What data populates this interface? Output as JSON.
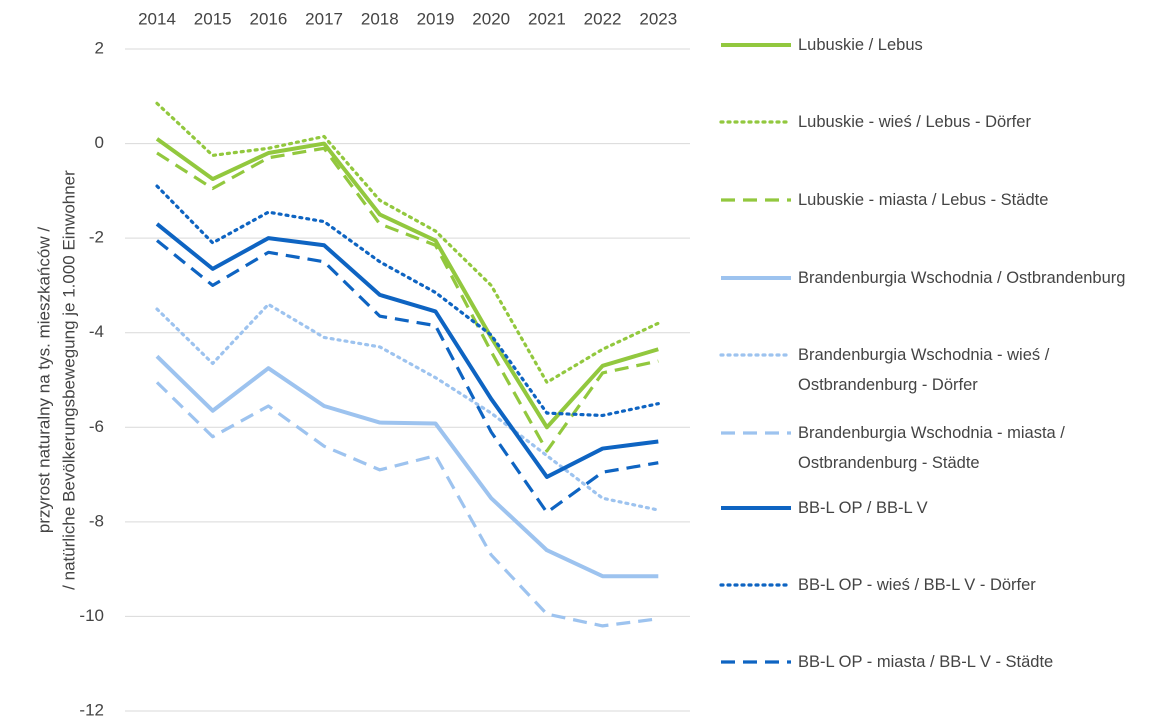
{
  "chart_data": {
    "type": "line",
    "y_axis_label": [
      "przyrost naturalny na tys. mieszkańców /",
      "/ natürliche Bevölkerungsbewegung je 1.000 Einwohner"
    ],
    "categories": [
      "2014",
      "2015",
      "2016",
      "2017",
      "2018",
      "2019",
      "2020",
      "2021",
      "2022",
      "2023"
    ],
    "ylim": [
      -12,
      2
    ],
    "yticks": [
      2,
      0,
      -2,
      -4,
      -6,
      -8,
      -10,
      -12
    ],
    "grid": true,
    "series": [
      {
        "name": "Lubuskie / Lebus",
        "color": "#92c83e",
        "dash": "solid",
        "values": [
          0.1,
          -0.75,
          -0.2,
          0.0,
          -1.5,
          -2.05,
          -4.1,
          -6.0,
          -4.7,
          -4.35
        ]
      },
      {
        "name": "Lubuskie - wieś / Lebus - Dörfer",
        "color": "#92c83e",
        "dash": "dotted",
        "values": [
          0.85,
          -0.25,
          -0.1,
          0.15,
          -1.2,
          -1.85,
          -3.0,
          -5.05,
          -4.35,
          -3.8
        ]
      },
      {
        "name": "Lubuskie - miasta / Lebus - Städte",
        "color": "#92c83e",
        "dash": "dashed",
        "values": [
          -0.2,
          -0.95,
          -0.3,
          -0.1,
          -1.7,
          -2.15,
          -4.4,
          -6.5,
          -4.85,
          -4.6
        ]
      },
      {
        "name": "Brandenburgia Wschodnia / Ostbrandenburg",
        "color": "#9dc3ef",
        "dash": "solid",
        "values": [
          -4.5,
          -5.65,
          -4.75,
          -5.55,
          -5.9,
          -5.92,
          -7.5,
          -8.6,
          -9.15,
          -9.15
        ]
      },
      {
        "name": "Brandenburgia Wschodnia - wieś / Ostbrandenburg - Dörfer",
        "color": "#9dc3ef",
        "dash": "dotted",
        "values": [
          -3.5,
          -4.65,
          -3.4,
          -4.1,
          -4.3,
          -4.95,
          -5.7,
          -6.6,
          -7.5,
          -7.75
        ]
      },
      {
        "name": "Brandenburgia Wschodnia - miasta / Ostbrandenburg - Städte",
        "color": "#9dc3ef",
        "dash": "dashed",
        "values": [
          -5.05,
          -6.2,
          -5.55,
          -6.4,
          -6.9,
          -6.6,
          -8.7,
          -9.95,
          -10.2,
          -10.05
        ]
      },
      {
        "name": "BB-L OP / BB-L V",
        "color": "#0e64c2",
        "dash": "solid",
        "values": [
          -1.7,
          -2.65,
          -2.0,
          -2.15,
          -3.2,
          -3.55,
          -5.4,
          -7.05,
          -6.45,
          -6.3
        ]
      },
      {
        "name": "BB-L OP - wieś / BB-L V - Dörfer",
        "color": "#0e64c2",
        "dash": "dotted",
        "values": [
          -0.9,
          -2.1,
          -1.45,
          -1.65,
          -2.5,
          -3.15,
          -4.05,
          -5.7,
          -5.75,
          -5.5
        ]
      },
      {
        "name": "BB-L OP - miasta / BB-L V  - Städte",
        "color": "#0e64c2",
        "dash": "dashed",
        "values": [
          -2.05,
          -3.0,
          -2.3,
          -2.5,
          -3.65,
          -3.85,
          -6.1,
          -7.8,
          -6.95,
          -6.75
        ]
      }
    ]
  }
}
